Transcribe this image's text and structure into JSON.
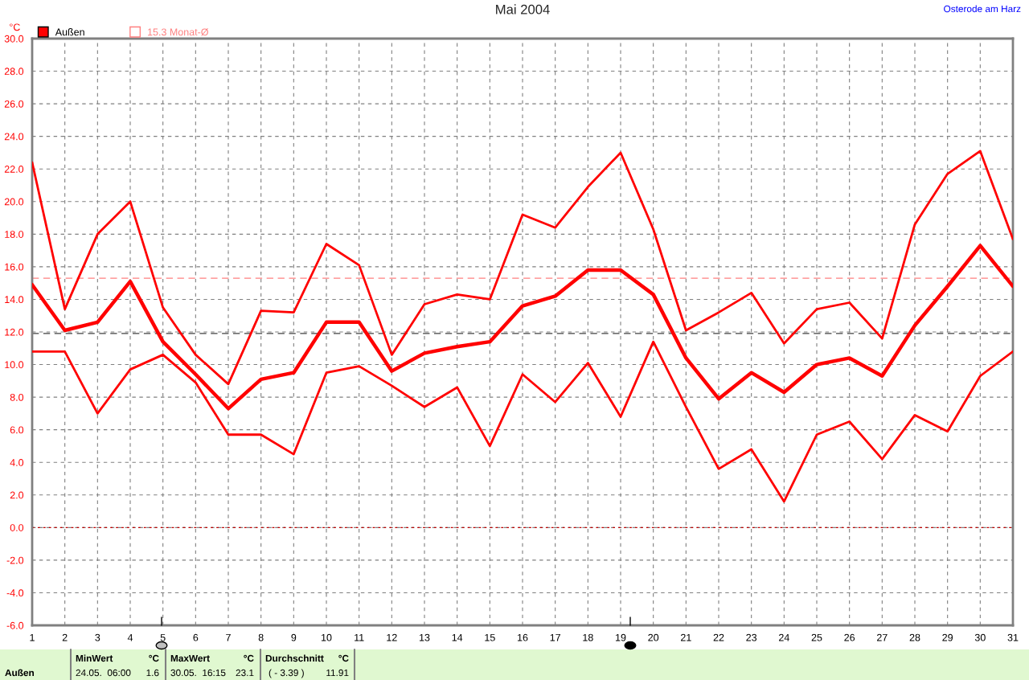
{
  "chart_data": {
    "type": "line",
    "title": "Mai 2004",
    "ylabel": "°C",
    "x": [
      1,
      2,
      3,
      4,
      5,
      6,
      7,
      8,
      9,
      10,
      11,
      12,
      13,
      14,
      15,
      16,
      17,
      18,
      19,
      20,
      21,
      22,
      23,
      24,
      25,
      26,
      27,
      28,
      29,
      30,
      31
    ],
    "series": [
      {
        "color": "#ff0000",
        "values": [
          22.4,
          13.4,
          18.0,
          20.0,
          13.5,
          10.6,
          8.8,
          13.3,
          13.2,
          17.4,
          16.1,
          10.6,
          13.7,
          14.3,
          14.0,
          19.2,
          18.4,
          20.9,
          23.0,
          18.3,
          12.1,
          13.2,
          14.4,
          11.3,
          13.4,
          13.8,
          11.6,
          18.6,
          21.7,
          23.1,
          17.7
        ]
      },
      {
        "name": "Außen",
        "color": "#ff0000",
        "values": [
          14.9,
          12.1,
          12.6,
          15.1,
          11.4,
          9.4,
          7.3,
          9.1,
          9.5,
          12.6,
          12.6,
          9.6,
          10.7,
          11.1,
          11.4,
          13.6,
          14.2,
          15.8,
          15.8,
          14.3,
          10.4,
          7.9,
          9.5,
          8.3,
          10.0,
          10.4,
          9.3,
          12.4,
          14.8,
          17.3,
          14.8
        ]
      },
      {
        "color": "#ff0000",
        "values": [
          10.8,
          10.8,
          7.0,
          9.7,
          10.6,
          8.9,
          5.7,
          5.7,
          4.5,
          9.5,
          9.9,
          8.7,
          7.4,
          8.6,
          5.0,
          9.4,
          7.7,
          10.1,
          6.8,
          11.4,
          7.4,
          3.6,
          4.8,
          1.6,
          5.7,
          6.5,
          4.2,
          6.9,
          5.9,
          9.3,
          10.8
        ]
      }
    ],
    "xlim": [
      1,
      31
    ],
    "xticks": [
      1,
      2,
      3,
      4,
      5,
      6,
      7,
      8,
      9,
      10,
      11,
      12,
      13,
      14,
      15,
      16,
      17,
      18,
      19,
      20,
      21,
      22,
      23,
      24,
      25,
      26,
      27,
      28,
      29,
      30,
      31
    ],
    "ylim": [
      -6,
      30
    ],
    "yticks": [
      {
        "value": -6,
        "label": "-6.0"
      },
      {
        "value": -4,
        "label": "-4.0"
      },
      {
        "value": -2,
        "label": "-2.0"
      },
      {
        "value": 0,
        "label": "0.0"
      },
      {
        "value": 2,
        "label": "2.0"
      },
      {
        "value": 4,
        "label": "4.0"
      },
      {
        "value": 6,
        "label": "6.0"
      },
      {
        "value": 8,
        "label": "8.0"
      },
      {
        "value": 10,
        "label": "10.0"
      },
      {
        "value": 12,
        "label": "12.0"
      },
      {
        "value": 14,
        "label": "14.0"
      },
      {
        "value": 16,
        "label": "16.0"
      },
      {
        "value": 18,
        "label": "18.0"
      },
      {
        "value": 20,
        "label": "20.0"
      },
      {
        "value": 22,
        "label": "22.0"
      },
      {
        "value": 24,
        "label": "24.0"
      },
      {
        "value": 26,
        "label": "26.0"
      },
      {
        "value": 28,
        "label": "28.0"
      },
      {
        "value": 30,
        "label": "30.0"
      }
    ],
    "ref_lines": [
      {
        "axis": "y",
        "value": 15.3,
        "label": "15.3 Monat-Ø",
        "color": "#ff8080",
        "line_style": "dashed"
      },
      {
        "axis": "y",
        "value": 11.91,
        "color": "#404040",
        "line_style": "dashed"
      },
      {
        "axis": "y",
        "value": 0,
        "color": "#c00000",
        "line_style": "dotted"
      }
    ],
    "grid": true,
    "legend": "top left",
    "marker": "none",
    "line_style": "solid",
    "annotations": [
      "Osterode am Harz",
      "Außen",
      "MinWert",
      "°C",
      "24.05.  06:00",
      "1.6",
      "MaxWert",
      "°C",
      "30.05.  16:15",
      "23.1",
      "Durchschnitt",
      "°C",
      "( - 3.39 )",
      "11.91"
    ]
  }
}
